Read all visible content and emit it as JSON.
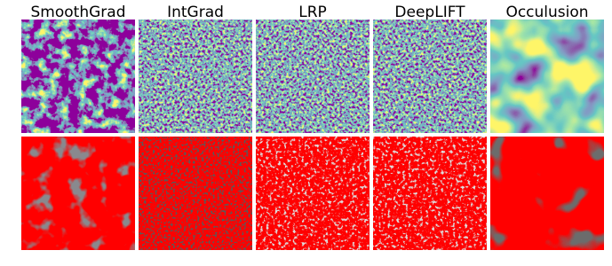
{
  "columns": [
    {
      "title": "SmoothGrad"
    },
    {
      "title": "IntGrad"
    },
    {
      "title": "LRP"
    },
    {
      "title": "DeepLIFT"
    },
    {
      "title": "Occulusion"
    }
  ]
}
